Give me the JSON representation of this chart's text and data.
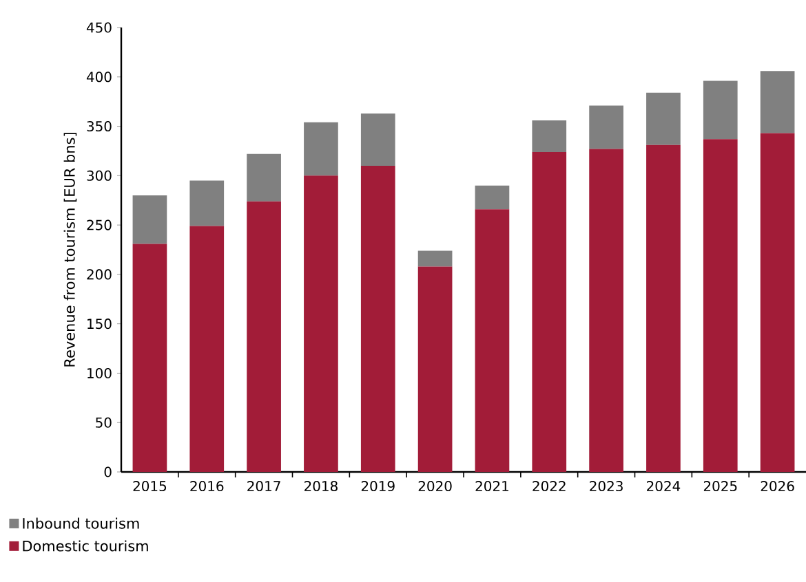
{
  "chart_data": {
    "type": "bar",
    "stacked": true,
    "ylabel": "Revenue from tourism [EUR bns]",
    "categories": [
      "2015",
      "2016",
      "2017",
      "2018",
      "2019",
      "2020",
      "2021",
      "2022",
      "2023",
      "2024",
      "2025",
      "2026"
    ],
    "series": [
      {
        "name": "Domestic tourism",
        "color": "#a21c38",
        "values": [
          231,
          249,
          274,
          300,
          310,
          208,
          266,
          324,
          327,
          331,
          337,
          343
        ]
      },
      {
        "name": "Inbound tourism",
        "color": "#808080",
        "values": [
          49,
          46,
          48,
          54,
          53,
          16,
          24,
          32,
          44,
          53,
          59,
          63
        ]
      }
    ],
    "ylim": [
      0,
      450
    ],
    "yticks": [
      0,
      50,
      100,
      150,
      200,
      250,
      300,
      350,
      400,
      450
    ],
    "grid": false,
    "legend": "bottom left"
  }
}
